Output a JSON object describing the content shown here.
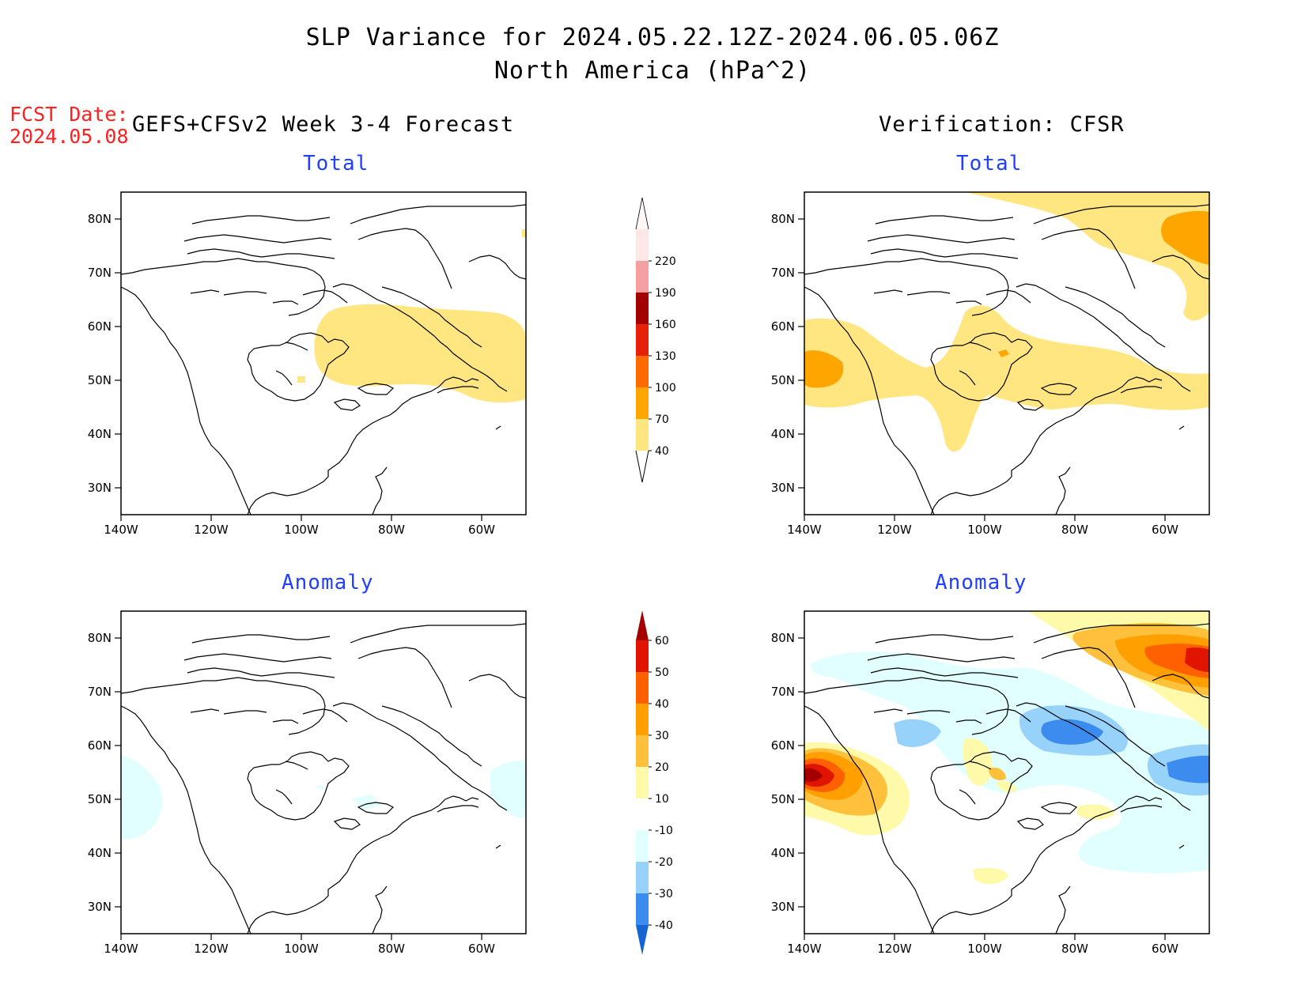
{
  "title": "SLP Variance for 2024.05.22.12Z-2024.06.05.06Z",
  "subtitle": "North America (hPa^2)",
  "fcst_label": "FCST Date:",
  "fcst_date": "2024.05.08",
  "left_header": "GEFS+CFSv2 Week 3-4 Forecast",
  "right_header": "Verification: CFSR",
  "panel_titles": {
    "top_left": "Total",
    "top_right": "Total",
    "bottom_left": "Anomaly",
    "bottom_right": "Anomaly"
  },
  "lat_labels": [
    "80N",
    "70N",
    "60N",
    "50N",
    "40N",
    "30N"
  ],
  "lon_labels": [
    "140W",
    "120W",
    "100W",
    "80W",
    "60W"
  ],
  "colorbar_total": {
    "levels": [
      "40",
      "70",
      "100",
      "130",
      "160",
      "190",
      "220"
    ],
    "colors": [
      "#ffe680",
      "#ffa500",
      "#ff6a00",
      "#e8200a",
      "#a50000",
      "#f4a0a0",
      "#fde8e8"
    ]
  },
  "colorbar_anomaly": {
    "levels": [
      "-40",
      "-30",
      "-20",
      "-10",
      "10",
      "20",
      "30",
      "40",
      "50",
      "60"
    ],
    "colors": [
      "#1464d2",
      "#3c8cf0",
      "#96d2fa",
      "#e1ffff",
      "#ffffff",
      "#fffaaa",
      "#ffc03c",
      "#ffa000",
      "#ff6000",
      "#e11400",
      "#a50000"
    ]
  },
  "map_colors": {
    "light_yellow": "#ffe680",
    "orange": "#ffa500",
    "dark_orange": "#ff6a00",
    "red": "#e11400",
    "dark_red": "#a50000",
    "pale_yellow": "#fffaaa",
    "light_orange": "#ffc03c",
    "pale_cyan": "#e1ffff",
    "light_blue": "#96d2fa",
    "blue": "#3c8cf0",
    "deep_blue": "#1464d2"
  }
}
